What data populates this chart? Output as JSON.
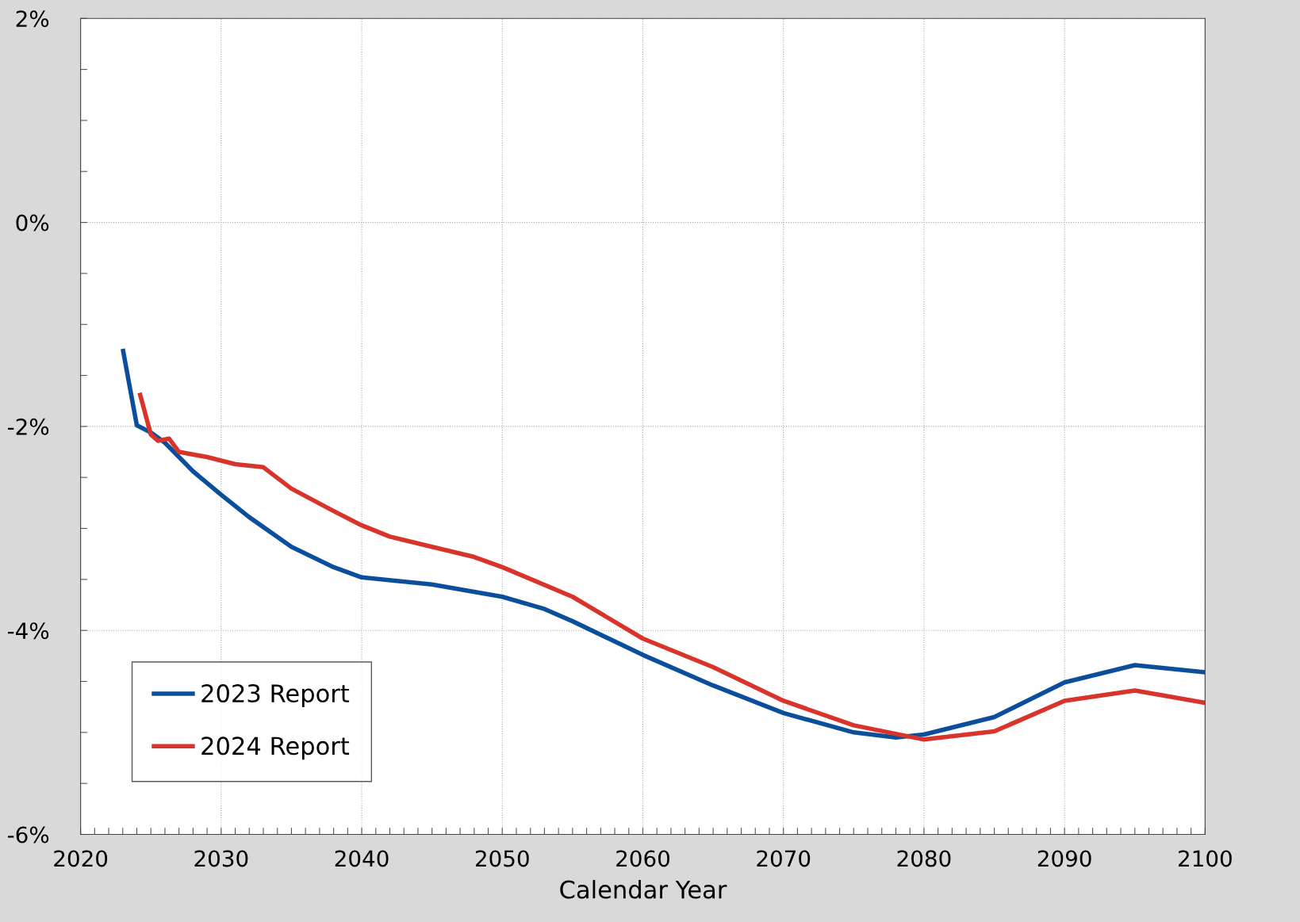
{
  "chart_data": {
    "type": "line",
    "xlabel": "Calendar Year",
    "xlim": [
      2020,
      2100
    ],
    "xticks": [
      2020,
      {
        "value": 2021,
        "label": null
      },
      {
        "value": 2022,
        "label": null
      },
      {
        "value": 2023,
        "label": null
      },
      {
        "value": 2024,
        "label": null
      },
      {
        "value": 2025,
        "label": null
      },
      {
        "value": 2026,
        "label": null
      },
      {
        "value": 2027,
        "label": null
      },
      {
        "value": 2028,
        "label": null
      },
      {
        "value": 2029,
        "label": null
      },
      2030,
      {
        "value": 2031,
        "label": null
      },
      {
        "value": 2032,
        "label": null
      },
      {
        "value": 2033,
        "label": null
      },
      {
        "value": 2034,
        "label": null
      },
      {
        "value": 2035,
        "label": null
      },
      {
        "value": 2036,
        "label": null
      },
      {
        "value": 2037,
        "label": null
      },
      {
        "value": 2038,
        "label": null
      },
      {
        "value": 2039,
        "label": null
      },
      2040,
      {
        "value": 2041,
        "label": null
      },
      {
        "value": 2042,
        "label": null
      },
      {
        "value": 2043,
        "label": null
      },
      {
        "value": 2044,
        "label": null
      },
      {
        "value": 2045,
        "label": null
      },
      {
        "value": 2046,
        "label": null
      },
      {
        "value": 2047,
        "label": null
      },
      {
        "value": 2048,
        "label": null
      },
      {
        "value": 2049,
        "label": null
      },
      2050,
      {
        "value": 2051,
        "label": null
      },
      {
        "value": 2052,
        "label": null
      },
      {
        "value": 2053,
        "label": null
      },
      {
        "value": 2054,
        "label": null
      },
      {
        "value": 2055,
        "label": null
      },
      {
        "value": 2056,
        "label": null
      },
      {
        "value": 2057,
        "label": null
      },
      {
        "value": 2058,
        "label": null
      },
      {
        "value": 2059,
        "label": null
      },
      2060,
      {
        "value": 2061,
        "label": null
      },
      {
        "value": 2062,
        "label": null
      },
      {
        "value": 2063,
        "label": null
      },
      {
        "value": 2064,
        "label": null
      },
      {
        "value": 2065,
        "label": null
      },
      {
        "value": 2066,
        "label": null
      },
      {
        "value": 2067,
        "label": null
      },
      {
        "value": 2068,
        "label": null
      },
      {
        "value": 2069,
        "label": null
      },
      2070,
      {
        "value": 2071,
        "label": null
      },
      {
        "value": 2072,
        "label": null
      },
      {
        "value": 2073,
        "label": null
      },
      {
        "value": 2074,
        "label": null
      },
      {
        "value": 2075,
        "label": null
      },
      {
        "value": 2076,
        "label": null
      },
      {
        "value": 2077,
        "label": null
      },
      {
        "value": 2078,
        "label": null
      },
      {
        "value": 2079,
        "label": null
      },
      2080,
      {
        "value": 2081,
        "label": null
      },
      {
        "value": 2082,
        "label": null
      },
      {
        "value": 2083,
        "label": null
      },
      {
        "value": 2084,
        "label": null
      },
      {
        "value": 2085,
        "label": null
      },
      {
        "value": 2086,
        "label": null
      },
      {
        "value": 2087,
        "label": null
      },
      {
        "value": 2088,
        "label": null
      },
      {
        "value": 2089,
        "label": null
      },
      2090,
      {
        "value": 2091,
        "label": null
      },
      {
        "value": 2092,
        "label": null
      },
      {
        "value": 2093,
        "label": null
      },
      {
        "value": 2094,
        "label": null
      },
      {
        "value": 2095,
        "label": null
      },
      {
        "value": 2096,
        "label": null
      },
      {
        "value": 2097,
        "label": null
      },
      {
        "value": 2098,
        "label": null
      },
      {
        "value": 2099,
        "label": null
      },
      2100
    ],
    "ylim": [
      -6,
      2
    ],
    "yticks": [
      {
        "value": -6,
        "label": "-6%"
      },
      {
        "value": -5.5,
        "label": null
      },
      {
        "value": -5,
        "label": null
      },
      {
        "value": -4.5,
        "label": null
      },
      {
        "value": -4,
        "label": "-4%"
      },
      {
        "value": -3.5,
        "label": null
      },
      {
        "value": -3,
        "label": null
      },
      {
        "value": -2.5,
        "label": null
      },
      {
        "value": -2,
        "label": "-2%"
      },
      {
        "value": -1.5,
        "label": null
      },
      {
        "value": -1,
        "label": null
      },
      {
        "value": -0.5,
        "label": null
      },
      {
        "value": 0,
        "label": "0%"
      },
      {
        "value": 0.5,
        "label": null
      },
      {
        "value": 1,
        "label": null
      },
      {
        "value": 1.5,
        "label": null
      },
      {
        "value": 2,
        "label": "2%"
      }
    ],
    "grid": true,
    "legend": "bottom left",
    "line_style": "solid",
    "marker": "none",
    "series": [
      {
        "name": "2023 Report",
        "color": "#0b4f9c",
        "x": [
          2023,
          2024,
          2025,
          2026,
          2028,
          2030,
          2032,
          2035,
          2038,
          2040,
          2045,
          2050,
          2053,
          2055,
          2060,
          2065,
          2070,
          2075,
          2078,
          2080,
          2085,
          2090,
          2095,
          2100
        ],
        "values": [
          -1.24,
          -1.99,
          -2.06,
          -2.16,
          -2.44,
          -2.67,
          -2.89,
          -3.18,
          -3.38,
          -3.48,
          -3.55,
          -3.67,
          -3.79,
          -3.91,
          -4.24,
          -4.54,
          -4.81,
          -5.0,
          -5.05,
          -5.02,
          -4.85,
          -4.51,
          -4.34,
          -4.41
        ]
      },
      {
        "name": "2024 Report",
        "color": "#d9342b",
        "x": [
          2024.2,
          2025,
          2025.5,
          2026.3,
          2027,
          2029,
          2031,
          2033,
          2035,
          2038,
          2040,
          2042,
          2045,
          2048,
          2050,
          2055,
          2060,
          2065,
          2070,
          2075,
          2080,
          2085,
          2090,
          2095,
          2100
        ],
        "values": [
          -1.67,
          -2.08,
          -2.14,
          -2.12,
          -2.25,
          -2.3,
          -2.37,
          -2.4,
          -2.61,
          -2.83,
          -2.97,
          -3.08,
          -3.18,
          -3.28,
          -3.38,
          -3.67,
          -4.08,
          -4.36,
          -4.69,
          -4.93,
          -5.07,
          -4.99,
          -4.69,
          -4.59,
          -4.71
        ]
      }
    ]
  }
}
